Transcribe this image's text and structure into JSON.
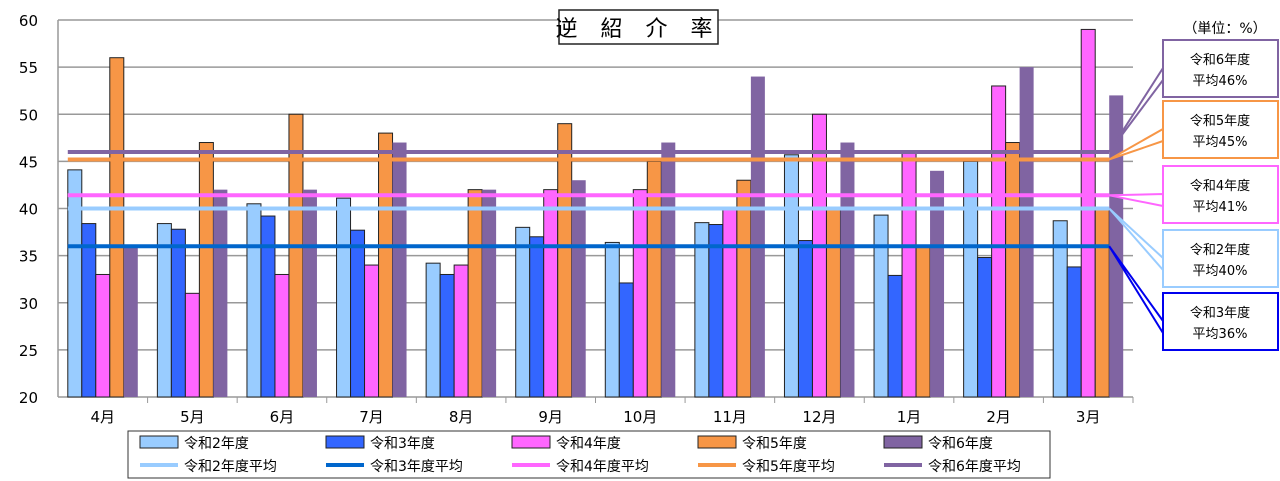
{
  "chart_data": {
    "type": "bar",
    "title": "逆 紹 介 率",
    "unit_label": "（単位：%）",
    "ylim": [
      20,
      60
    ],
    "yticks": [
      20,
      25,
      30,
      35,
      40,
      45,
      50,
      55,
      60
    ],
    "grid": true,
    "legend_placement": "bottom",
    "categories": [
      "4月",
      "5月",
      "6月",
      "7月",
      "8月",
      "9月",
      "10月",
      "11月",
      "12月",
      "1月",
      "2月",
      "3月"
    ],
    "series": [
      {
        "name": "令和2年度",
        "color": "#99ccff",
        "values": [
          44.1,
          38.4,
          40.5,
          41.1,
          34.2,
          38.0,
          36.4,
          38.5,
          45.7,
          39.3,
          45.0,
          38.7
        ]
      },
      {
        "name": "令和3年度",
        "color": "#3366ff",
        "values": [
          38.4,
          37.8,
          39.2,
          37.7,
          33.0,
          37.0,
          32.1,
          38.3,
          36.6,
          32.9,
          34.8,
          33.8
        ]
      },
      {
        "name": "令和4年度",
        "color": "#ff66ff",
        "values": [
          33,
          31,
          33,
          34,
          34,
          42,
          42,
          40,
          50,
          46,
          53,
          59
        ]
      },
      {
        "name": "令和5年度",
        "color": "#f79646",
        "values": [
          56,
          47,
          50,
          48,
          42,
          49,
          45,
          43,
          40,
          36,
          47,
          40
        ]
      },
      {
        "name": "令和6年度",
        "color": "#8064a2",
        "values": [
          36,
          42,
          42,
          47,
          42,
          43,
          47,
          54,
          47,
          44,
          55,
          52
        ]
      }
    ],
    "averages": [
      {
        "name": "令和2年度平均",
        "color": "#99ccff",
        "value": 40,
        "note": [
          "令和2年度",
          "平均40%"
        ]
      },
      {
        "name": "令和3年度平均",
        "color": "#0066cc",
        "value": 36,
        "note": [
          "令和3年度",
          "平均36%"
        ]
      },
      {
        "name": "令和4年度平均",
        "color": "#ff66ff",
        "value": 41.4,
        "note": [
          "令和4年度",
          "平均41%"
        ]
      },
      {
        "name": "令和5年度平均",
        "color": "#f79646",
        "value": 45.2,
        "note": [
          "令和5年度",
          "平均45%"
        ]
      },
      {
        "name": "令和6年度平均",
        "color": "#8064a2",
        "value": 46,
        "note": [
          "令和6年度",
          "平均46%"
        ]
      }
    ]
  }
}
